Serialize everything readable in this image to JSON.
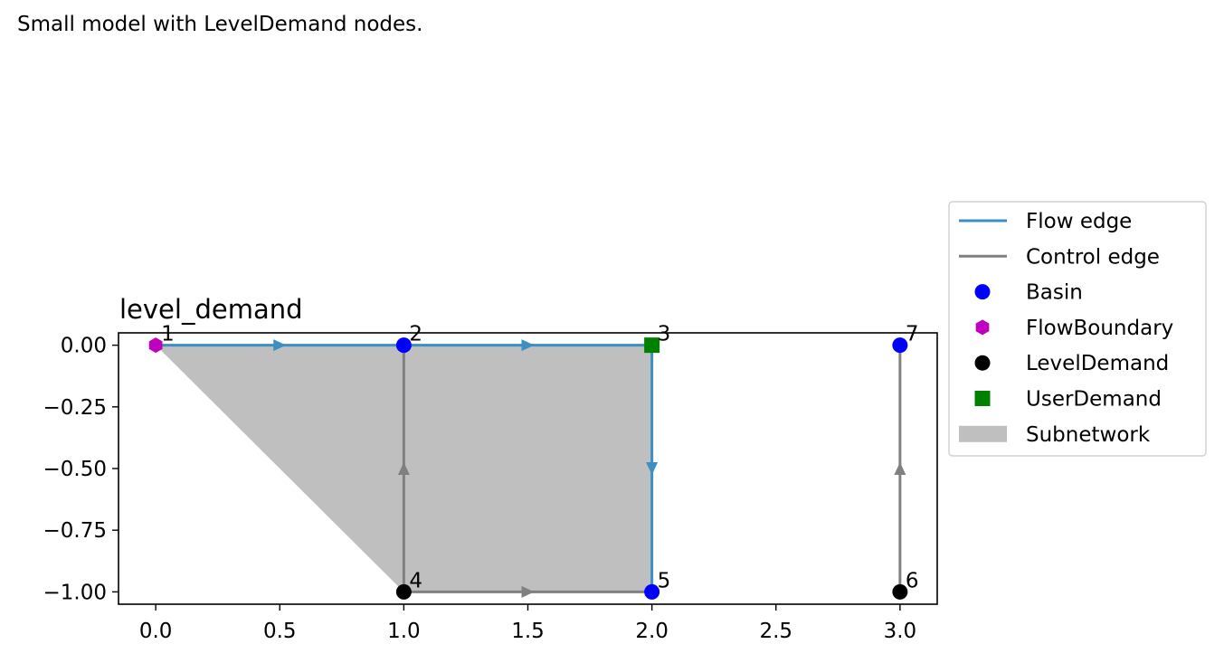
{
  "caption": "Small model with LevelDemand nodes.",
  "chart_data": {
    "type": "scatter",
    "title": "level_demand",
    "xlabel": "",
    "ylabel": "",
    "xlim": [
      -0.15,
      3.15
    ],
    "ylim": [
      -1.05,
      0.05
    ],
    "xticks": [
      0.0,
      0.5,
      1.0,
      1.5,
      2.0,
      2.5,
      3.0
    ],
    "xtick_labels": [
      "0.0",
      "0.5",
      "1.0",
      "1.5",
      "2.0",
      "2.5",
      "3.0"
    ],
    "yticks": [
      0.0,
      -0.25,
      -0.5,
      -0.75,
      -1.0
    ],
    "ytick_labels": [
      "0.00",
      "−0.25",
      "−0.50",
      "−0.75",
      "−1.00"
    ],
    "grid": false,
    "legend_position": "outside-right",
    "subnetwork_polygon": [
      [
        0,
        0
      ],
      [
        2,
        0
      ],
      [
        2,
        -1
      ],
      [
        1,
        -1
      ]
    ],
    "nodes": [
      {
        "id": "1",
        "type": "FlowBoundary",
        "x": 0,
        "y": 0
      },
      {
        "id": "2",
        "type": "Basin",
        "x": 1,
        "y": 0
      },
      {
        "id": "3",
        "type": "UserDemand",
        "x": 2,
        "y": 0
      },
      {
        "id": "4",
        "type": "LevelDemand",
        "x": 1,
        "y": -1
      },
      {
        "id": "5",
        "type": "Basin",
        "x": 2,
        "y": -1
      },
      {
        "id": "6",
        "type": "LevelDemand",
        "x": 3,
        "y": -1
      },
      {
        "id": "7",
        "type": "Basin",
        "x": 3,
        "y": 0
      }
    ],
    "edges": [
      {
        "from": "1",
        "to": "2",
        "kind": "flow"
      },
      {
        "from": "2",
        "to": "3",
        "kind": "flow"
      },
      {
        "from": "3",
        "to": "5",
        "kind": "flow"
      },
      {
        "from": "4",
        "to": "2",
        "kind": "control"
      },
      {
        "from": "4",
        "to": "5",
        "kind": "control"
      },
      {
        "from": "6",
        "to": "7",
        "kind": "control"
      }
    ],
    "legend": [
      {
        "label": "Flow edge",
        "kind": "flow-line"
      },
      {
        "label": "Control edge",
        "kind": "control-line"
      },
      {
        "label": "Basin",
        "kind": "Basin"
      },
      {
        "label": "FlowBoundary",
        "kind": "FlowBoundary"
      },
      {
        "label": "LevelDemand",
        "kind": "LevelDemand"
      },
      {
        "label": "UserDemand",
        "kind": "UserDemand"
      },
      {
        "label": "Subnetwork",
        "kind": "subnetwork"
      }
    ],
    "colors": {
      "flow_edge": "#3b8fc2",
      "control_edge": "#808080",
      "Basin": "#0000ff",
      "FlowBoundary": "#bf00bf",
      "LevelDemand": "#000000",
      "UserDemand": "#008000",
      "subnetwork": "#bfbfbf"
    }
  }
}
